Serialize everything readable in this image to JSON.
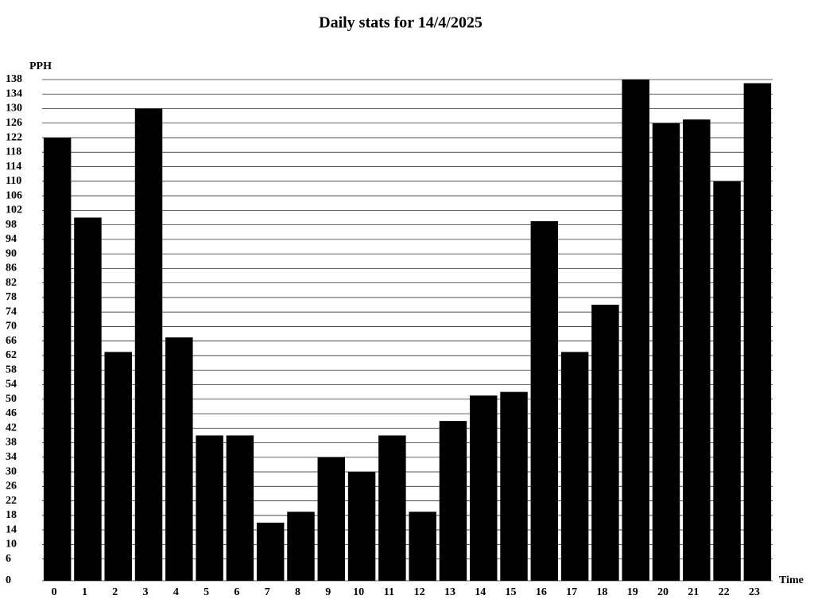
{
  "chart_data": {
    "type": "bar",
    "title": "Daily stats for 14/4/2025",
    "y_label": "PPH",
    "x_label": "Time",
    "categories": [
      "0",
      "1",
      "2",
      "3",
      "4",
      "5",
      "6",
      "7",
      "8",
      "9",
      "10",
      "11",
      "12",
      "13",
      "14",
      "15",
      "16",
      "17",
      "18",
      "19",
      "20",
      "21",
      "22",
      "23"
    ],
    "values": [
      122,
      100,
      63,
      130,
      67,
      40,
      40,
      16,
      19,
      34,
      30,
      40,
      19,
      44,
      51,
      52,
      99,
      63,
      76,
      138,
      126,
      127,
      110,
      137
    ],
    "color": "#000000",
    "ylim": [
      0,
      138
    ],
    "yticks": [
      0,
      6,
      10,
      14,
      18,
      22,
      26,
      30,
      34,
      38,
      42,
      46,
      50,
      54,
      58,
      62,
      66,
      70,
      74,
      78,
      82,
      86,
      90,
      94,
      98,
      102,
      106,
      110,
      114,
      118,
      122,
      126,
      130,
      134,
      138
    ],
    "grid": true
  }
}
